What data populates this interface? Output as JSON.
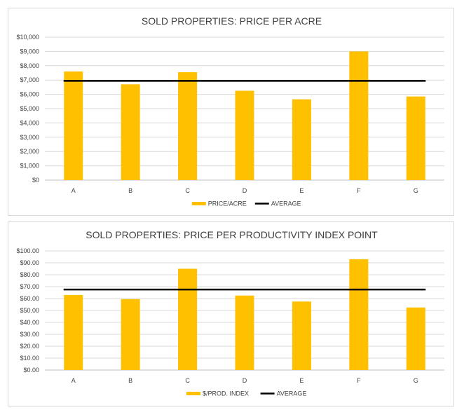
{
  "chart_data": [
    {
      "type": "bar",
      "title": "SOLD PROPERTIES: PRICE PER ACRE",
      "categories": [
        "A",
        "B",
        "C",
        "D",
        "E",
        "F",
        "G"
      ],
      "series": [
        {
          "name": "PRICE/ACRE",
          "type": "bar",
          "color": "#ffc000",
          "values": [
            7600,
            6700,
            7550,
            6250,
            5650,
            9000,
            5850
          ]
        },
        {
          "name": "AVERAGE",
          "type": "line",
          "color": "#000000",
          "values": [
            6940,
            6940,
            6940,
            6940,
            6940,
            6940,
            6940
          ]
        }
      ],
      "ylim": [
        0,
        10000
      ],
      "yticks": [
        "$0",
        "$1,000",
        "$2,000",
        "$3,000",
        "$4,000",
        "$5,000",
        "$6,000",
        "$7,000",
        "$8,000",
        "$9,000",
        "$10,000"
      ],
      "grid": true,
      "legend": "bottom"
    },
    {
      "type": "bar",
      "title": "SOLD PROPERTIES: PRICE PER PRODUCTIVITY INDEX  POINT",
      "categories": [
        "A",
        "B",
        "C",
        "D",
        "E",
        "F",
        "G"
      ],
      "series": [
        {
          "name": "$/PROD. INDEX",
          "type": "bar",
          "color": "#ffc000",
          "values": [
            63,
            59.5,
            85,
            62.5,
            57.5,
            93,
            52.5
          ]
        },
        {
          "name": "AVERAGE",
          "type": "line",
          "color": "#000000",
          "values": [
            67.6,
            67.6,
            67.6,
            67.6,
            67.6,
            67.6,
            67.6
          ]
        }
      ],
      "ylim": [
        0,
        100
      ],
      "yticks": [
        "$0.00",
        "$10.00",
        "$20.00",
        "$30.00",
        "$40.00",
        "$50.00",
        "$60.00",
        "$70.00",
        "$80.00",
        "$90.00",
        "$100.00"
      ],
      "grid": true,
      "legend": "bottom"
    }
  ]
}
